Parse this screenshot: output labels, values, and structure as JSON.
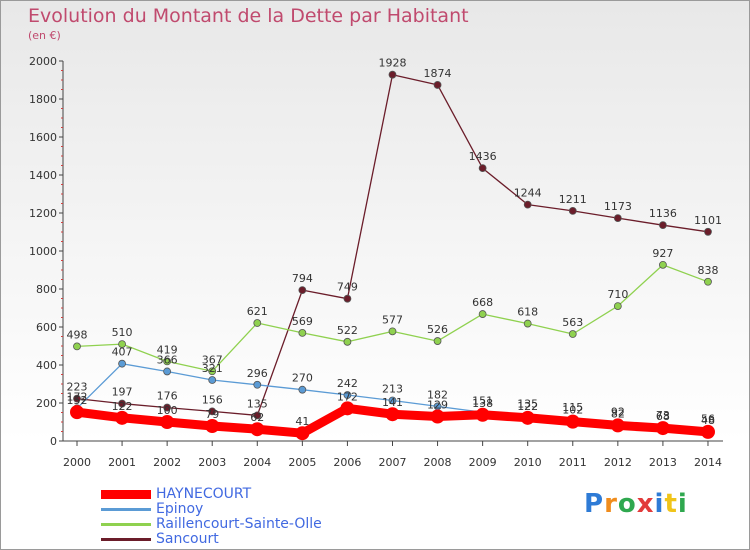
{
  "title": "Evolution du Montant de la Dette par Habitant",
  "subtitle": "(en €)",
  "logo": {
    "letters": [
      "P",
      "r",
      "o",
      "x",
      "i",
      "t",
      "i"
    ],
    "colors": [
      "#2e7bd6",
      "#f08c1c",
      "#2fa84f",
      "#e23b3b",
      "#2e7bd6",
      "#f0c419",
      "#2fa84f"
    ]
  },
  "chart_data": {
    "type": "line",
    "title": "Evolution du Montant de la Dette par Habitant",
    "ylabel": "(en €)",
    "x": [
      "2000",
      "2001",
      "2002",
      "2003",
      "2004",
      "2005",
      "2006",
      "2007",
      "2008",
      "2009",
      "2010",
      "2011",
      "2012",
      "2013",
      "2014"
    ],
    "ylim": [
      0,
      2000
    ],
    "yticks": [
      0,
      200,
      400,
      600,
      800,
      1000,
      1200,
      1400,
      1600,
      1800,
      2000
    ],
    "grid": false,
    "legend": "bottom-left",
    "series": [
      {
        "name": "HAYNECOURT",
        "color": "#ff0000",
        "values": [
          152,
          122,
          100,
          79,
          62,
          41,
          172,
          141,
          129,
          138,
          122,
          102,
          82,
          68,
          48
        ],
        "labels": [
          "152",
          "122",
          "100",
          "79",
          "62",
          "41",
          "172",
          "141",
          "129",
          "138",
          "122",
          "102",
          "82",
          "68",
          "48"
        ]
      },
      {
        "name": "Epinoy",
        "color": "#5b9bd5",
        "values": [
          172,
          407,
          366,
          321,
          296,
          270,
          242,
          213,
          182,
          151,
          135,
          115,
          92,
          73,
          56
        ],
        "labels": [
          "172",
          "407",
          "366",
          "321",
          "296",
          "270",
          "242",
          "213",
          "182",
          "151",
          "135",
          "115",
          "92",
          "73",
          "56"
        ]
      },
      {
        "name": "Raillencourt-Sainte-Olle",
        "color": "#8fd14f",
        "values": [
          498,
          510,
          419,
          367,
          621,
          569,
          522,
          577,
          526,
          668,
          618,
          563,
          710,
          927,
          838
        ],
        "labels": [
          "498",
          "510",
          "419",
          "367",
          "621",
          "569",
          "522",
          "577",
          "526",
          "668",
          "618",
          "563",
          "710",
          "927",
          "838"
        ]
      },
      {
        "name": "Sancourt",
        "color": "#6b1d2a",
        "values": [
          223,
          197,
          176,
          156,
          135,
          794,
          749,
          1928,
          1874,
          1436,
          1244,
          1211,
          1173,
          1136,
          1101
        ],
        "labels": [
          "223",
          "197",
          "176",
          "156",
          "135",
          "794",
          "749",
          "1928",
          "1874",
          "1436",
          "1244",
          "1211",
          "1173",
          "1136",
          "1101"
        ]
      }
    ]
  }
}
